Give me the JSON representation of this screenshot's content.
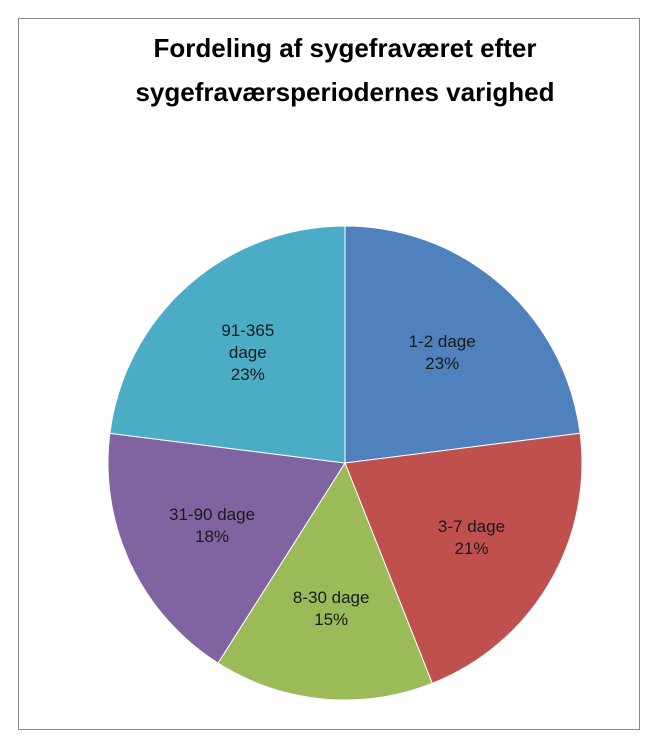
{
  "chart_data": {
    "type": "pie",
    "title": "Fordeling af sygefraværet efter sygefraværsperiodernes varighed",
    "categories": [
      "1-2 dage",
      "3-7 dage",
      "8-30 dage",
      "31-90 dage",
      "91-365 dage"
    ],
    "values": [
      23,
      21,
      15,
      18,
      23
    ],
    "value_labels": [
      "23%",
      "21%",
      "15%",
      "18%",
      "23%"
    ],
    "colors": [
      "#4f81bd",
      "#c0504d",
      "#9bbb59",
      "#8064a2",
      "#4bacc6"
    ]
  }
}
